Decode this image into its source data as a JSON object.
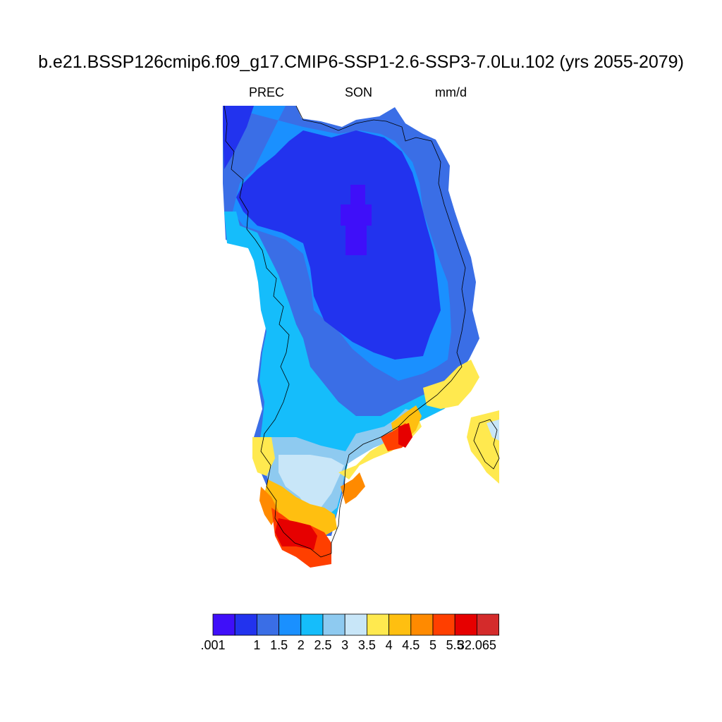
{
  "title": "b.e21.BSSP126cmip6.f09_g17.CMIP6-SSP1-2.6-SSP3-7.0Lu.102 (yrs 2055-2079)",
  "subtitles": {
    "variable": "PREC",
    "season": "SON",
    "units": "mm/d"
  },
  "colorbar": {
    "colors": [
      "#3f0ff9",
      "#2233ee",
      "#3a6ee6",
      "#1a90ff",
      "#15bdfb",
      "#8ecaf0",
      "#c8e6f8",
      "#ffe94f",
      "#ffbf10",
      "#ff8a00",
      "#ff3f00",
      "#e60000",
      "#d42b2b"
    ],
    "labels": [
      ".001",
      "1",
      "1.5",
      "2",
      "2.5",
      "3",
      "3.5",
      "4",
      "4.5",
      "5",
      "5.5",
      "32.065"
    ]
  },
  "chart_data": {
    "type": "heatmap",
    "title": "b.e21.BSSP126cmip6.f09_g17.CMIP6-SSP1-2.6-SSP3-7.0Lu.102 (yrs 2055-2079)",
    "variable": "PREC",
    "season": "SON",
    "units": "mm/d",
    "levels": [
      0.001,
      1,
      1.5,
      2,
      2.5,
      3,
      3.5,
      4,
      4.5,
      5,
      5.5,
      32.065
    ],
    "legend": "bottom"
  }
}
